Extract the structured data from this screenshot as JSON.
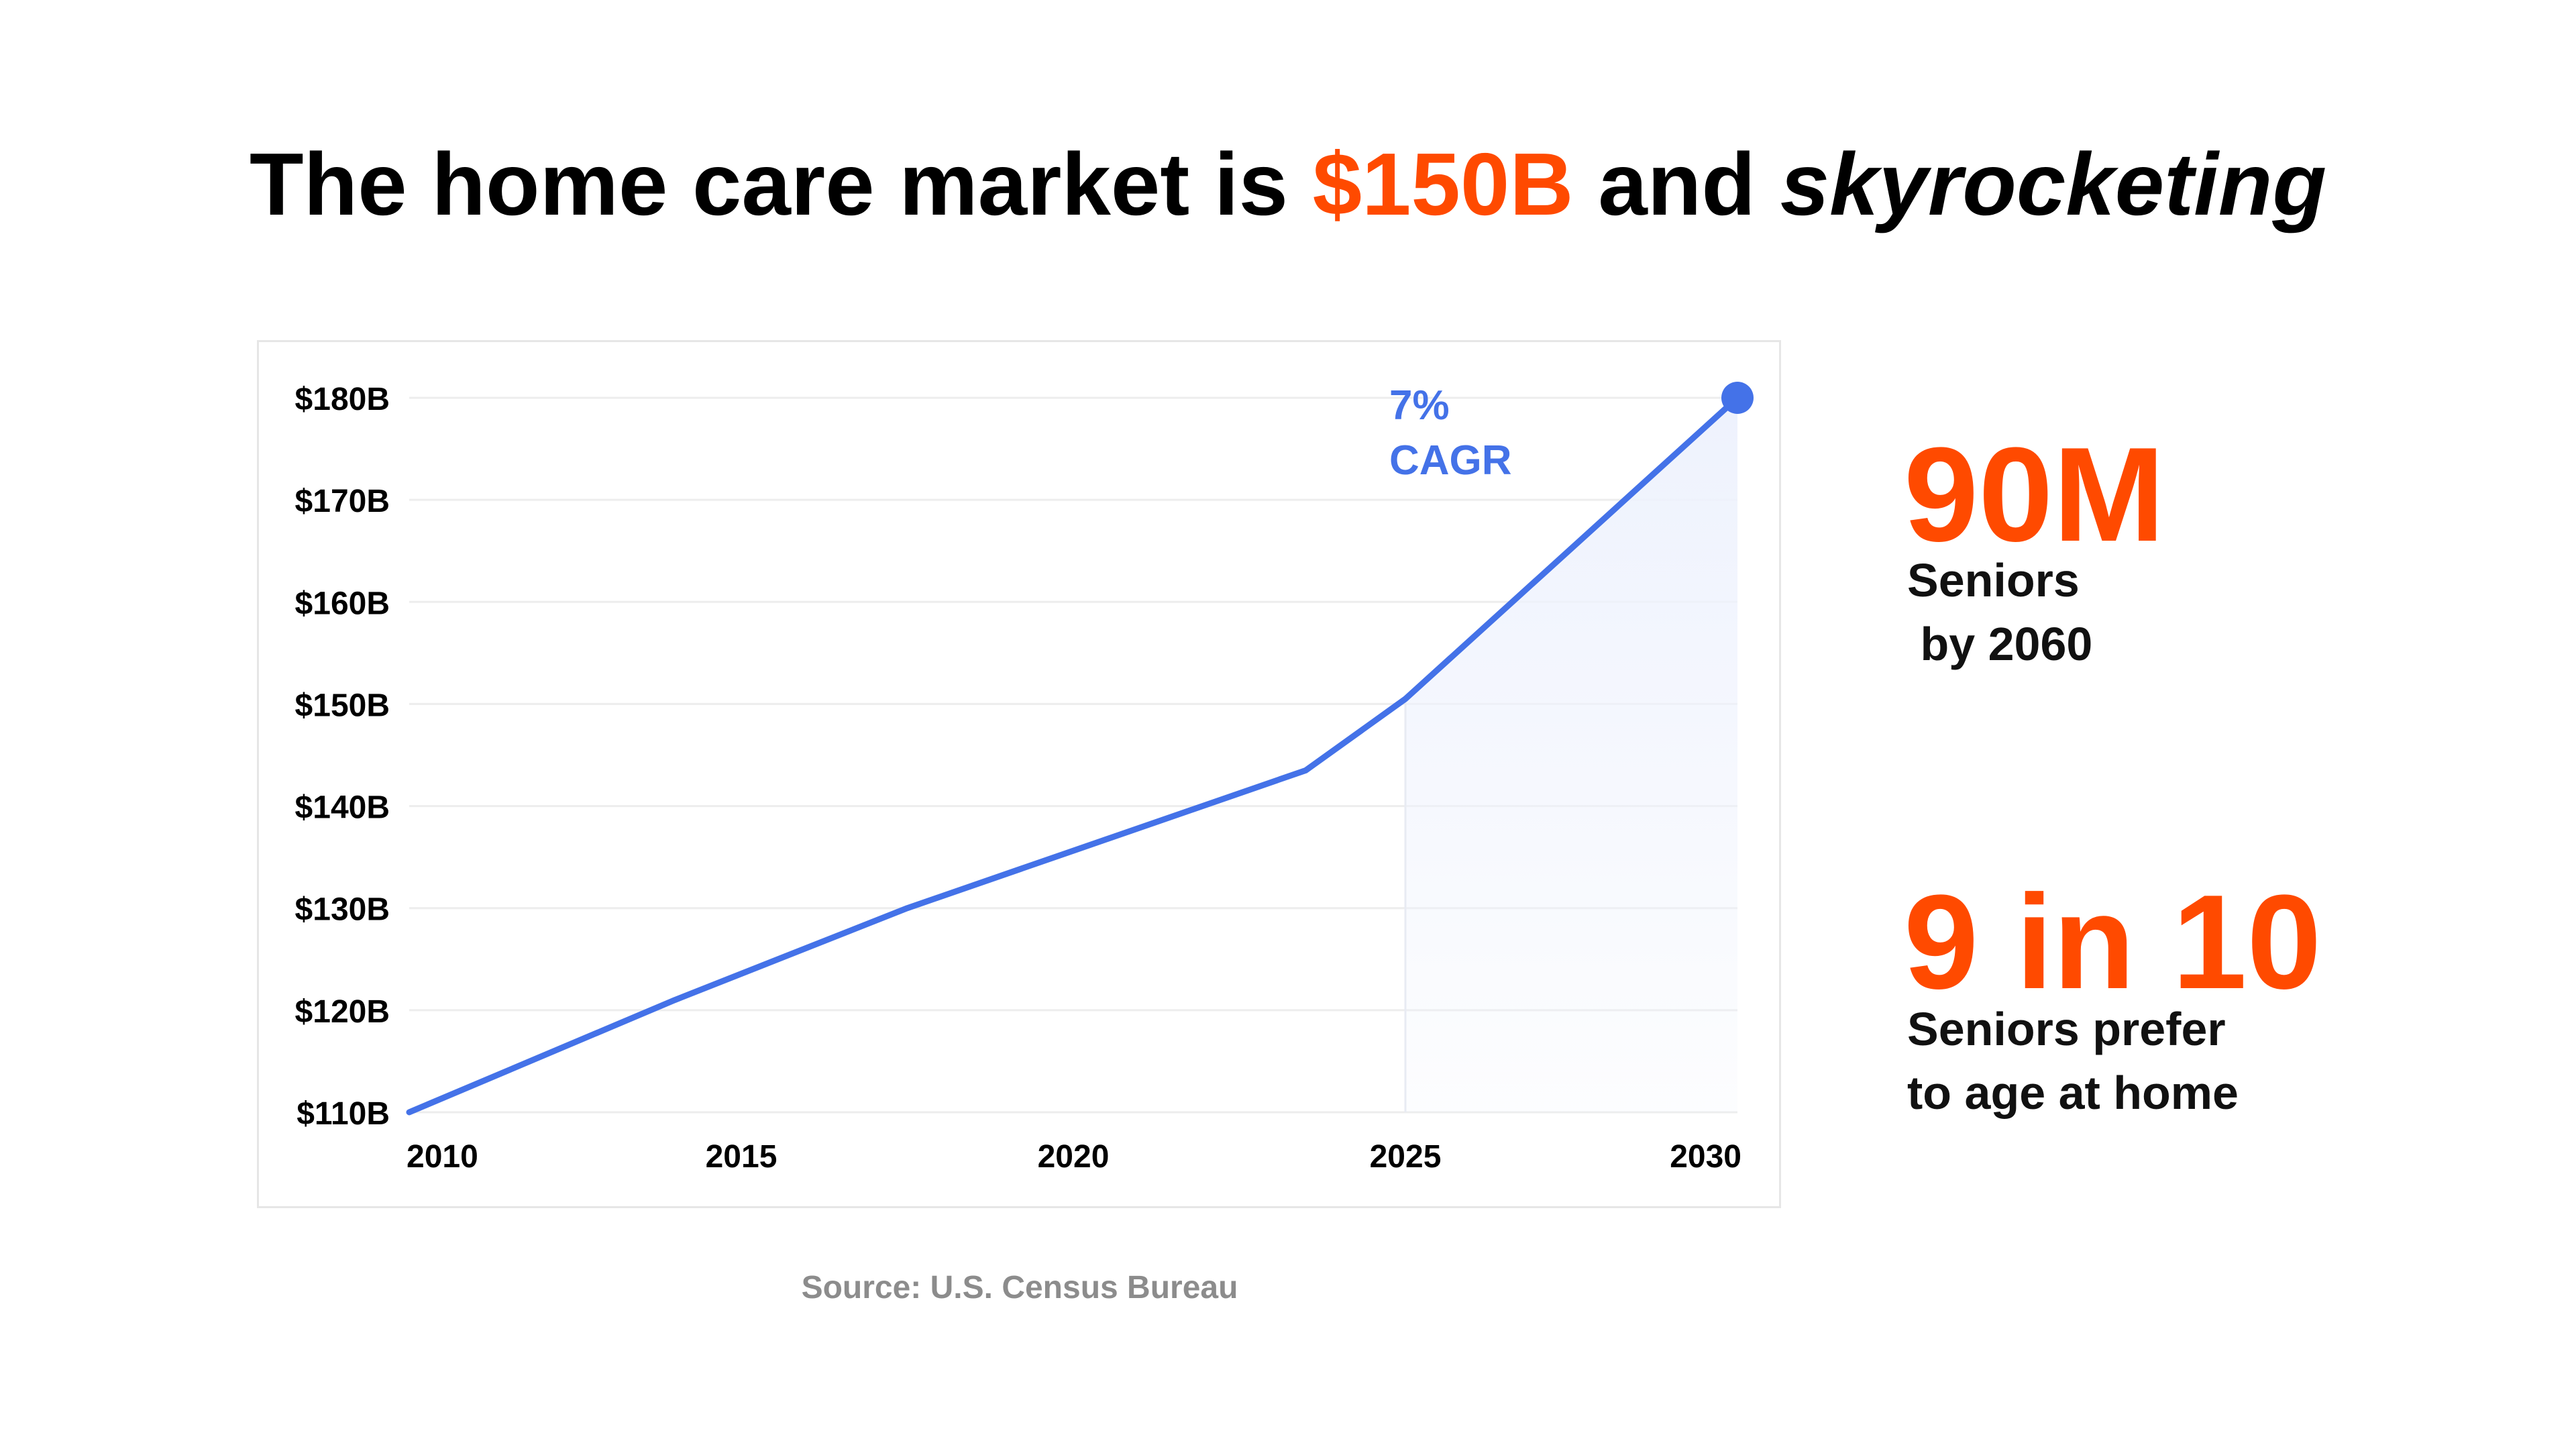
{
  "title": {
    "part1": "The home care market is ",
    "highlight": "$150B",
    "part2": " and ",
    "emphasis": "skyrocketing"
  },
  "colors": {
    "accent": "#FF4A00",
    "line": "#4472E8",
    "fill": "#EEF2FD",
    "text": "#000000",
    "source": "#8C8C8C"
  },
  "chart_data": {
    "type": "line",
    "title": "",
    "xlabel": "",
    "ylabel": "",
    "x_ticks": [
      "2010",
      "2015",
      "2020",
      "2025",
      "2030"
    ],
    "y_ticks": [
      "$110B",
      "$120B",
      "$130B",
      "$140B",
      "$150B",
      "$160B",
      "$170B",
      "$180B"
    ],
    "xlim": [
      2010,
      2030
    ],
    "ylim": [
      110,
      180
    ],
    "y_unit": "$B",
    "grid": true,
    "series": [
      {
        "x": [
          2010,
          2014,
          2017.5,
          2023.5,
          2025,
          2030
        ],
        "y": [
          110,
          121,
          130,
          143.5,
          150.5,
          180
        ]
      }
    ],
    "forecast_region": [
      2025,
      2030
    ],
    "endpoint_marker": {
      "x": 2030,
      "y": 180
    },
    "annotation": {
      "line1": "7%",
      "line2": "CAGR"
    }
  },
  "stats": [
    {
      "value": "90M",
      "line1": "Seniors",
      "line2": " by 2060"
    },
    {
      "value": "9 in 10",
      "line1": "Seniors prefer",
      "line2": "to age at home"
    }
  ],
  "source": "Source: U.S. Census Bureau"
}
